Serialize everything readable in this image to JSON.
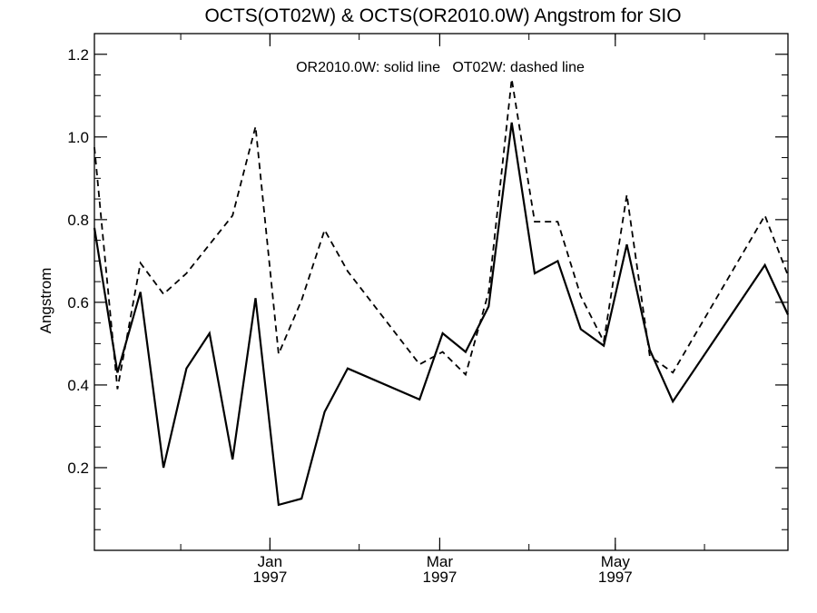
{
  "chart_data": {
    "type": "line",
    "title": "OCTS(OT02W) & OCTS(OR2010.0W)  Angstrom for SIO",
    "ylabel": "Angstrom",
    "xlabel": "",
    "annotation": "OR2010.0W: solid line   OT02W: dashed line",
    "ylim": [
      0.0,
      1.25
    ],
    "xlim": [
      "1996-11-01",
      "1997-06-30"
    ],
    "grid": false,
    "yticks": [
      {
        "value": 0.2,
        "label": "0.2"
      },
      {
        "value": 0.4,
        "label": "0.4"
      },
      {
        "value": 0.6,
        "label": "0.6"
      },
      {
        "value": 0.8,
        "label": "0.8"
      },
      {
        "value": 1.0,
        "label": "1.0"
      },
      {
        "value": 1.2,
        "label": "1.2"
      }
    ],
    "xticks": [
      {
        "date": "1997-01-01",
        "month": "Jan",
        "year": "1997"
      },
      {
        "date": "1997-03-01",
        "month": "Mar",
        "year": "1997"
      },
      {
        "date": "1997-05-01",
        "month": "May",
        "year": "1997"
      }
    ],
    "series": [
      {
        "name": "OR2010.0W",
        "style": "solid",
        "points": [
          [
            "1996-11-01",
            0.78
          ],
          [
            "1996-11-09",
            0.43
          ],
          [
            "1996-11-17",
            0.625
          ],
          [
            "1996-11-25",
            0.2
          ],
          [
            "1996-12-03",
            0.44
          ],
          [
            "1996-12-11",
            0.525
          ],
          [
            "1996-12-19",
            0.22
          ],
          [
            "1996-12-27",
            0.61
          ],
          [
            "1997-01-04",
            0.11
          ],
          [
            "1997-01-12",
            0.125
          ],
          [
            "1997-01-20",
            0.335
          ],
          [
            "1997-01-28",
            0.44
          ],
          [
            "1997-02-22",
            0.365
          ],
          [
            "1997-03-02",
            0.525
          ],
          [
            "1997-03-10",
            0.48
          ],
          [
            "1997-03-18",
            0.59
          ],
          [
            "1997-03-26",
            1.035
          ],
          [
            "1997-04-03",
            0.67
          ],
          [
            "1997-04-11",
            0.7
          ],
          [
            "1997-04-19",
            0.535
          ],
          [
            "1997-04-27",
            0.495
          ],
          [
            "1997-05-05",
            0.74
          ],
          [
            "1997-05-13",
            0.485
          ],
          [
            "1997-05-21",
            0.36
          ],
          [
            "1997-06-22",
            0.69
          ],
          [
            "1997-06-30",
            0.57
          ]
        ]
      },
      {
        "name": "OT02W",
        "style": "dashed",
        "points": [
          [
            "1996-11-01",
            0.975
          ],
          [
            "1996-11-09",
            0.39
          ],
          [
            "1996-11-17",
            0.695
          ],
          [
            "1996-11-25",
            0.62
          ],
          [
            "1996-12-03",
            0.67
          ],
          [
            "1996-12-11",
            0.74
          ],
          [
            "1996-12-19",
            0.81
          ],
          [
            "1996-12-27",
            1.025
          ],
          [
            "1997-01-04",
            0.475
          ],
          [
            "1997-01-12",
            0.605
          ],
          [
            "1997-01-20",
            0.775
          ],
          [
            "1997-01-28",
            0.675
          ],
          [
            "1997-02-22",
            0.45
          ],
          [
            "1997-03-02",
            0.48
          ],
          [
            "1997-03-10",
            0.425
          ],
          [
            "1997-03-18",
            0.625
          ],
          [
            "1997-03-26",
            1.14
          ],
          [
            "1997-04-03",
            0.795
          ],
          [
            "1997-04-11",
            0.795
          ],
          [
            "1997-04-19",
            0.615
          ],
          [
            "1997-04-27",
            0.505
          ],
          [
            "1997-05-05",
            0.86
          ],
          [
            "1997-05-13",
            0.47
          ],
          [
            "1997-05-21",
            0.43
          ],
          [
            "1997-06-22",
            0.81
          ],
          [
            "1997-06-30",
            0.665
          ]
        ]
      }
    ]
  }
}
